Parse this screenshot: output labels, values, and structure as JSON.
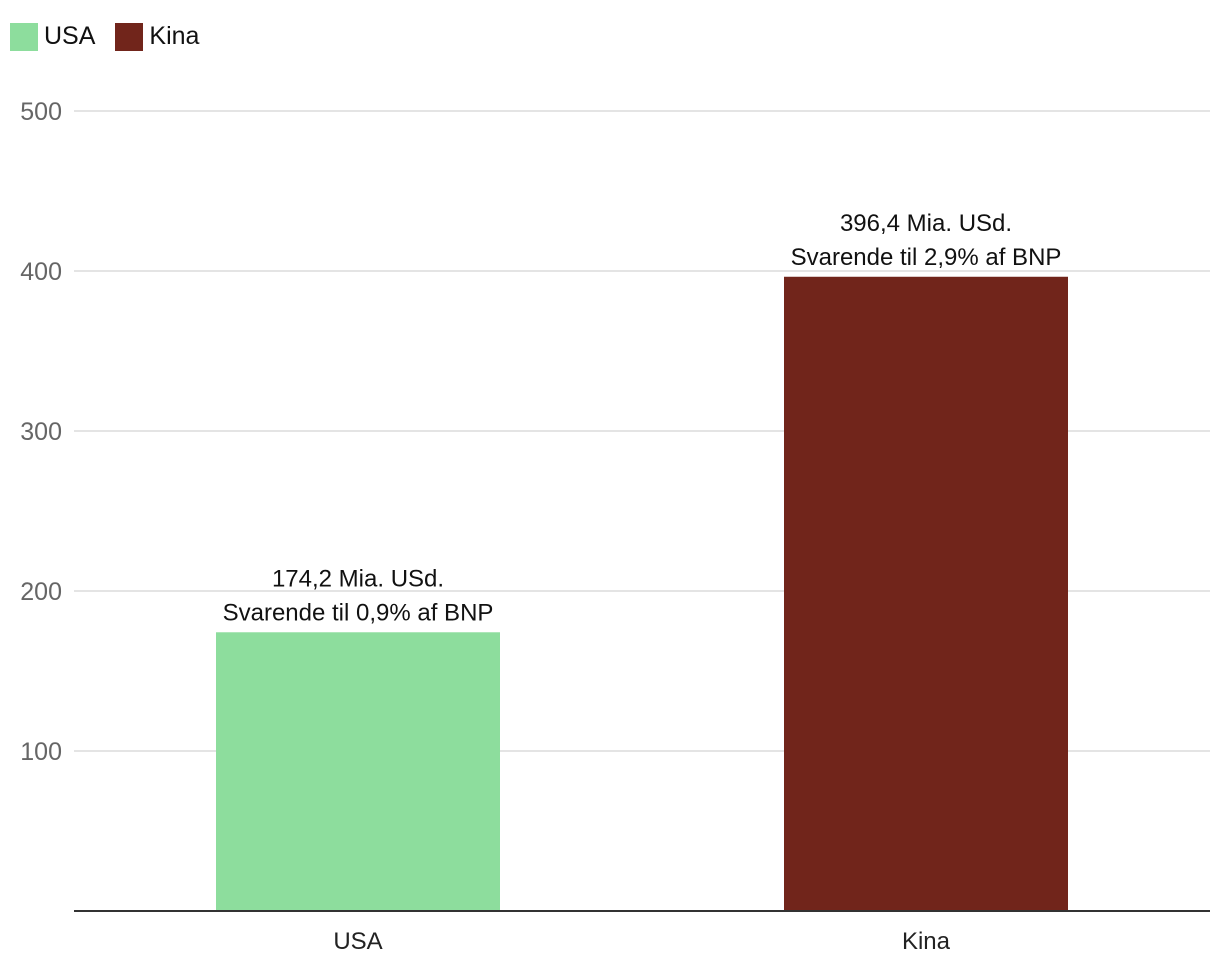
{
  "chart_data": {
    "type": "bar",
    "categories": [
      "USA",
      "Kina"
    ],
    "values": [
      174.2,
      396.4
    ],
    "colors": [
      "#8ddd9d",
      "#71251b"
    ],
    "data_labels": [
      [
        "174,2 Mia. USd.",
        "Svarende til 0,9% af BNP"
      ],
      [
        "396,4 Mia. USd.",
        "Svarende til 2,9% af BNP"
      ]
    ],
    "legend": [
      {
        "name": "USA",
        "color": "#8ddd9d"
      },
      {
        "name": "Kina",
        "color": "#71251b"
      }
    ],
    "legend_position": "top-left",
    "yticks": [
      100,
      200,
      300,
      400,
      500
    ],
    "ylim": [
      0,
      500
    ],
    "grid": true,
    "title": "",
    "xlabel": "",
    "ylabel": ""
  }
}
